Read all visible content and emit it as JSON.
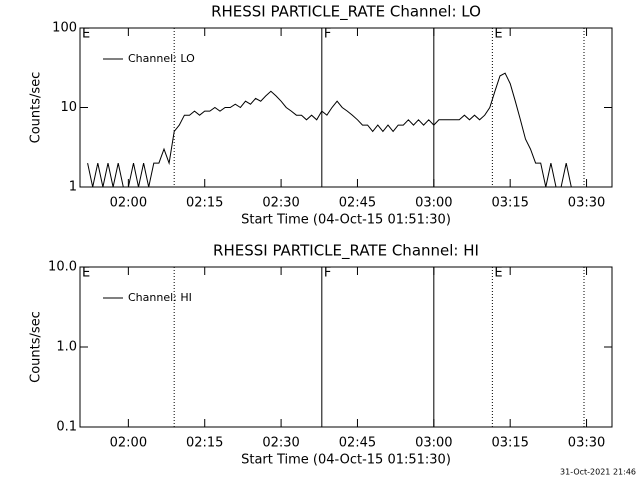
{
  "chart_data": [
    {
      "type": "line",
      "title": "RHESSI PARTICLE_RATE Channel: LO",
      "xlabel": "Start Time (04-Oct-15 01:51:30)",
      "ylabel": "Counts/sec",
      "log_y": true,
      "legend": "upper left",
      "xlim": [
        "01:50:30",
        "03:35:00"
      ],
      "xticks": [
        "02:00",
        "02:15",
        "02:30",
        "02:45",
        "03:00",
        "03:15",
        "03:30"
      ],
      "ylim": [
        1,
        100
      ],
      "yticks": [
        1,
        10,
        100
      ],
      "markers": [
        {
          "x": "01:50:30",
          "style": "solid",
          "label": "E"
        },
        {
          "x": "02:09",
          "style": "dotted"
        },
        {
          "x": "02:38",
          "style": "solid",
          "label": "F"
        },
        {
          "x": "03:00",
          "style": "solid"
        },
        {
          "x": "03:11:30",
          "style": "dotted",
          "label": "E"
        },
        {
          "x": "03:29:30",
          "style": "dotted"
        }
      ],
      "x": [
        "01:52",
        "01:53",
        "01:54",
        "01:55",
        "01:56",
        "01:57",
        "01:58",
        "01:59",
        "02:00",
        "02:01",
        "02:02",
        "02:03",
        "02:04",
        "02:05",
        "02:06",
        "02:07",
        "02:08",
        "02:09",
        "02:10",
        "02:11",
        "02:12",
        "02:13",
        "02:14",
        "02:15",
        "02:16",
        "02:17",
        "02:18",
        "02:19",
        "02:20",
        "02:21",
        "02:22",
        "02:23",
        "02:24",
        "02:25",
        "02:26",
        "02:27",
        "02:28",
        "02:29",
        "02:30",
        "02:31",
        "02:32",
        "02:33",
        "02:34",
        "02:35",
        "02:36",
        "02:37",
        "02:38",
        "02:39",
        "02:40",
        "02:41",
        "02:42",
        "02:43",
        "02:44",
        "02:45",
        "02:46",
        "02:47",
        "02:48",
        "02:49",
        "02:50",
        "02:51",
        "02:52",
        "02:53",
        "02:54",
        "02:55",
        "02:56",
        "02:57",
        "02:58",
        "02:59",
        "03:00",
        "03:01",
        "03:02",
        "03:03",
        "03:04",
        "03:05",
        "03:06",
        "03:07",
        "03:08",
        "03:09",
        "03:10",
        "03:11",
        "03:12",
        "03:13",
        "03:14",
        "03:15",
        "03:16",
        "03:17",
        "03:18",
        "03:19",
        "03:20",
        "03:21",
        "03:22",
        "03:23",
        "03:24",
        "03:25",
        "03:26",
        "03:27"
      ],
      "series": [
        {
          "name": "Channel: LO",
          "color": "#000000",
          "values": [
            2,
            1,
            2,
            1,
            2,
            1,
            2,
            1,
            1,
            2,
            1,
            2,
            1,
            2,
            2,
            3,
            2,
            5,
            6,
            8,
            8,
            9,
            8,
            9,
            9,
            10,
            9,
            10,
            10,
            11,
            10,
            12,
            11,
            13,
            12,
            14,
            16,
            14,
            12,
            10,
            9,
            8,
            8,
            7,
            8,
            7,
            9,
            8,
            10,
            12,
            10,
            9,
            8,
            7,
            6,
            6,
            5,
            6,
            5,
            6,
            5,
            6,
            6,
            7,
            6,
            7,
            6,
            7,
            6,
            7,
            7,
            7,
            7,
            7,
            8,
            7,
            8,
            7,
            8,
            10,
            16,
            25,
            27,
            20,
            12,
            7,
            4,
            3,
            2,
            2,
            1,
            2,
            1,
            1,
            2,
            1
          ]
        }
      ]
    },
    {
      "type": "line",
      "title": "RHESSI PARTICLE_RATE Channel: HI",
      "xlabel": "Start Time (04-Oct-15 01:51:30)",
      "ylabel": "Counts/sec",
      "log_y": true,
      "legend": "upper left",
      "xlim": [
        "01:50:30",
        "03:35:00"
      ],
      "xticks": [
        "02:00",
        "02:15",
        "02:30",
        "02:45",
        "03:00",
        "03:15",
        "03:30"
      ],
      "ylim": [
        0.1,
        10
      ],
      "yticks": [
        0.1,
        {
          "value": 1,
          "label": "1.0"
        },
        {
          "value": 10,
          "label": "10.0"
        }
      ],
      "markers": [
        {
          "x": "01:50:30",
          "style": "solid",
          "label": "E"
        },
        {
          "x": "02:09",
          "style": "dotted"
        },
        {
          "x": "02:38",
          "style": "solid",
          "label": "F"
        },
        {
          "x": "03:00",
          "style": "solid"
        },
        {
          "x": "03:11:30",
          "style": "dotted",
          "label": "E"
        },
        {
          "x": "03:29:30",
          "style": "dotted"
        }
      ],
      "x": [],
      "series": [
        {
          "name": "Channel: HI",
          "color": "#000000",
          "values": []
        }
      ]
    }
  ],
  "footer": "31-Oct-2021 21:46"
}
